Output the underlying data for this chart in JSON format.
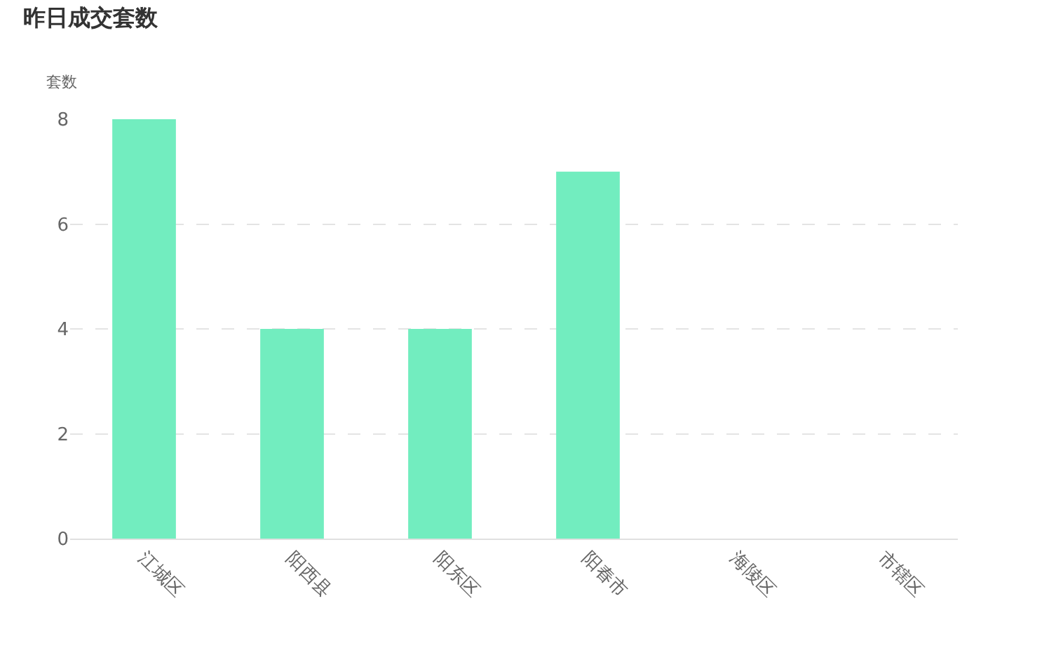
{
  "chart_data": {
    "type": "bar",
    "title": "昨日成交套数",
    "ylabel": "套数",
    "categories": [
      "江城区",
      "阳西县",
      "阳东区",
      "阳春市",
      "海陵区",
      "市辖区"
    ],
    "values": [
      8,
      4,
      4,
      7,
      0,
      0
    ],
    "color": "#72edbf",
    "ylim": [
      0,
      8
    ],
    "yticks": [
      0,
      2,
      4,
      6,
      8
    ],
    "grid": "y"
  }
}
